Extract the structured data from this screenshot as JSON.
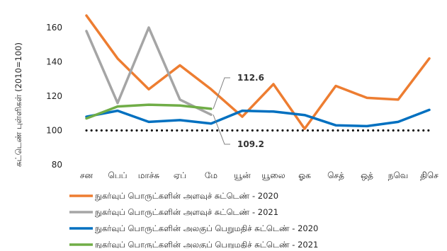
{
  "chart_data": {
    "type": "line",
    "ylabel": "சுட்டெண் புள்ளிகள் (2010=100)",
    "categories": [
      "சன",
      "பெப்",
      "மாச்சு",
      "ஏப்",
      "மே",
      "யூன்",
      "யூலை",
      "ஓக",
      "செத்",
      "ஒத்",
      "நவெ",
      "திசெ"
    ],
    "ylim": [
      80,
      170
    ],
    "yticks": [
      80,
      100,
      120,
      140,
      160
    ],
    "grid": false,
    "legend_position": "bottom",
    "reference_line": {
      "value": 100,
      "style": "dotted",
      "color": "#000000"
    },
    "series": [
      {
        "name": "நுகர்வுப் பொருட்களின் அளவுச் சுட்டெண் - 2020",
        "color": "#ED7D31",
        "values": [
          167,
          142,
          124,
          138,
          124,
          108,
          127,
          101,
          126,
          119,
          118,
          142
        ]
      },
      {
        "name": "நுகர்வுப் பொருட்களின் அளவுச் சுட்டெண் - 2021",
        "color": "#A5A5A5",
        "values": [
          158,
          116,
          160,
          118,
          109.2,
          null,
          null,
          null,
          null,
          null,
          null,
          null
        ]
      },
      {
        "name": "நுகர்வுப் பொருட்களின் அலகுப் பெறுமதிச் சுட்டெண் - 2020",
        "color": "#0070C0",
        "values": [
          108,
          111.5,
          105,
          106,
          104,
          111.5,
          111,
          109,
          103,
          102.5,
          105,
          112
        ]
      },
      {
        "name": "நுகர்வுப் பொருட்களின் அலகுப் பெறுமதிச் சுட்டெண் - 2021",
        "color": "#70AD47",
        "values": [
          107,
          114,
          115,
          114.5,
          112.6,
          null,
          null,
          null,
          null,
          null,
          null,
          null
        ]
      }
    ],
    "annotations": [
      {
        "text": "112.6",
        "series_index": 3,
        "point_index": 4
      },
      {
        "text": "109.2",
        "series_index": 1,
        "point_index": 4
      }
    ]
  }
}
